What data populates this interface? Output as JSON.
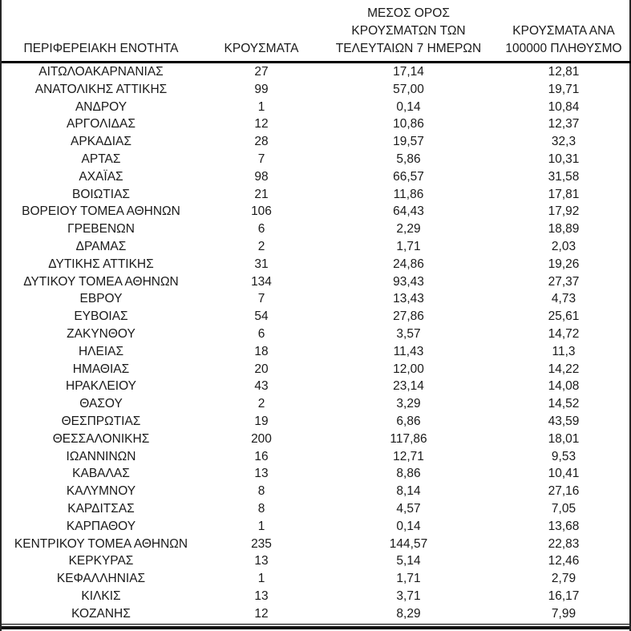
{
  "colors": {
    "background": "#ffffff",
    "text": "#1a1a1a",
    "rule": "#000000"
  },
  "table": {
    "columns": [
      {
        "id": "region",
        "label": "ΠΕΡΙΦΕΡΕΙΑΚΗ ΕΝΟΤΗΤΑ"
      },
      {
        "id": "cases",
        "label": "ΚΡΟΥΣΜΑΤΑ"
      },
      {
        "id": "avg7",
        "label": "ΜΕΣΟΣ ΟΡΟΣ\nΚΡΟΥΣΜΑΤΩΝ ΤΩΝ\nΤΕΛΕΥΤΑΙΩΝ 7 ΗΜΕΡΩΝ"
      },
      {
        "id": "per100k",
        "label": "ΚΡΟΥΣΜΑΤΑ ΑΝΑ\n100000 ΠΛΗΘΥΣΜΟ"
      }
    ],
    "rows": [
      {
        "region": "ΑΙΤΩΛΟΑΚΑΡΝΑΝΙΑΣ",
        "cases": "27",
        "avg7": "17,14",
        "per100k": "12,81"
      },
      {
        "region": "ΑΝΑΤΟΛΙΚΗΣ ΑΤΤΙΚΗΣ",
        "cases": "99",
        "avg7": "57,00",
        "per100k": "19,71"
      },
      {
        "region": "ΑΝΔΡΟΥ",
        "cases": "1",
        "avg7": "0,14",
        "per100k": "10,84"
      },
      {
        "region": "ΑΡΓΟΛΙΔΑΣ",
        "cases": "12",
        "avg7": "10,86",
        "per100k": "12,37"
      },
      {
        "region": "ΑΡΚΑΔΙΑΣ",
        "cases": "28",
        "avg7": "19,57",
        "per100k": "32,3"
      },
      {
        "region": "ΑΡΤΑΣ",
        "cases": "7",
        "avg7": "5,86",
        "per100k": "10,31"
      },
      {
        "region": "ΑΧΑΪΑΣ",
        "cases": "98",
        "avg7": "66,57",
        "per100k": "31,58"
      },
      {
        "region": "ΒΟΙΩΤΙΑΣ",
        "cases": "21",
        "avg7": "11,86",
        "per100k": "17,81"
      },
      {
        "region": "ΒΟΡΕΙΟΥ ΤΟΜΕΑ ΑΘΗΝΩΝ",
        "cases": "106",
        "avg7": "64,43",
        "per100k": "17,92"
      },
      {
        "region": "ΓΡΕΒΕΝΩΝ",
        "cases": "6",
        "avg7": "2,29",
        "per100k": "18,89"
      },
      {
        "region": "ΔΡΑΜΑΣ",
        "cases": "2",
        "avg7": "1,71",
        "per100k": "2,03"
      },
      {
        "region": "ΔΥΤΙΚΗΣ ΑΤΤΙΚΗΣ",
        "cases": "31",
        "avg7": "24,86",
        "per100k": "19,26"
      },
      {
        "region": "ΔΥΤΙΚΟΥ ΤΟΜΕΑ ΑΘΗΝΩΝ",
        "cases": "134",
        "avg7": "93,43",
        "per100k": "27,37"
      },
      {
        "region": "ΕΒΡΟΥ",
        "cases": "7",
        "avg7": "13,43",
        "per100k": "4,73"
      },
      {
        "region": "ΕΥΒΟΙΑΣ",
        "cases": "54",
        "avg7": "27,86",
        "per100k": "25,61"
      },
      {
        "region": "ΖΑΚΥΝΘΟΥ",
        "cases": "6",
        "avg7": "3,57",
        "per100k": "14,72"
      },
      {
        "region": "ΗΛΕΙΑΣ",
        "cases": "18",
        "avg7": "11,43",
        "per100k": "11,3"
      },
      {
        "region": "ΗΜΑΘΙΑΣ",
        "cases": "20",
        "avg7": "12,00",
        "per100k": "14,22"
      },
      {
        "region": "ΗΡΑΚΛΕΙΟΥ",
        "cases": "43",
        "avg7": "23,14",
        "per100k": "14,08"
      },
      {
        "region": "ΘΑΣΟΥ",
        "cases": "2",
        "avg7": "3,29",
        "per100k": "14,52"
      },
      {
        "region": "ΘΕΣΠΡΩΤΙΑΣ",
        "cases": "19",
        "avg7": "6,86",
        "per100k": "43,59"
      },
      {
        "region": "ΘΕΣΣΑΛΟΝΙΚΗΣ",
        "cases": "200",
        "avg7": "117,86",
        "per100k": "18,01"
      },
      {
        "region": "ΙΩΑΝΝΙΝΩΝ",
        "cases": "16",
        "avg7": "12,71",
        "per100k": "9,53"
      },
      {
        "region": "ΚΑΒΑΛΑΣ",
        "cases": "13",
        "avg7": "8,86",
        "per100k": "10,41"
      },
      {
        "region": "ΚΑΛΥΜΝΟΥ",
        "cases": "8",
        "avg7": "8,14",
        "per100k": "27,16"
      },
      {
        "region": "ΚΑΡΔΙΤΣΑΣ",
        "cases": "8",
        "avg7": "4,57",
        "per100k": "7,05"
      },
      {
        "region": "ΚΑΡΠΑΘΟΥ",
        "cases": "1",
        "avg7": "0,14",
        "per100k": "13,68"
      },
      {
        "region": "ΚΕΝΤΡΙΚΟΥ ΤΟΜΕΑ ΑΘΗΝΩΝ",
        "cases": "235",
        "avg7": "144,57",
        "per100k": "22,83"
      },
      {
        "region": "ΚΕΡΚΥΡΑΣ",
        "cases": "13",
        "avg7": "5,14",
        "per100k": "12,46"
      },
      {
        "region": "ΚΕΦΑΛΛΗΝΙΑΣ",
        "cases": "1",
        "avg7": "1,71",
        "per100k": "2,79"
      },
      {
        "region": "ΚΙΛΚΙΣ",
        "cases": "13",
        "avg7": "3,71",
        "per100k": "16,17"
      },
      {
        "region": "ΚΟΖΑΝΗΣ",
        "cases": "12",
        "avg7": "8,29",
        "per100k": "7,99"
      }
    ]
  }
}
